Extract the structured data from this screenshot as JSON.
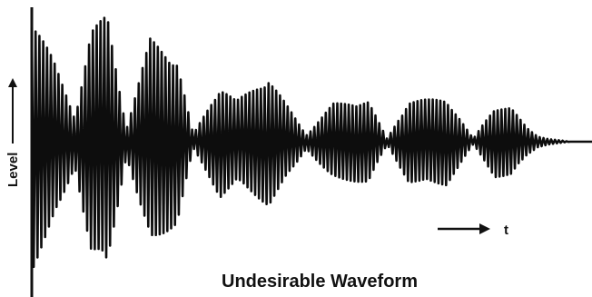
{
  "chart_data": {
    "type": "line",
    "title": "Undesirable Waveform",
    "ylabel": "Level",
    "xlabel": "t",
    "xlim": [
      0,
      100
    ],
    "ylim": [
      -1,
      1
    ],
    "grid": false,
    "legend": "none",
    "colors": {
      "signal": "#0d0d0d",
      "axis": "#111111",
      "background": "#ffffff"
    },
    "series": [
      {
        "x": [
          0,
          4,
          8,
          11,
          14,
          17.6,
          22,
          27,
          30,
          35,
          38,
          44,
          51,
          56,
          62.5,
          66,
          70,
          77,
          82,
          86,
          89,
          92,
          94,
          96,
          100
        ],
        "values": [
          0.95,
          0.6,
          0.18,
          0.82,
          0.93,
          0.1,
          0.76,
          0.6,
          0.05,
          0.41,
          0.3,
          0.47,
          0.05,
          0.28,
          0.3,
          0.02,
          0.3,
          0.32,
          0.02,
          0.26,
          0.25,
          0.1,
          0.04,
          0.02,
          0.0
        ]
      }
    ]
  }
}
